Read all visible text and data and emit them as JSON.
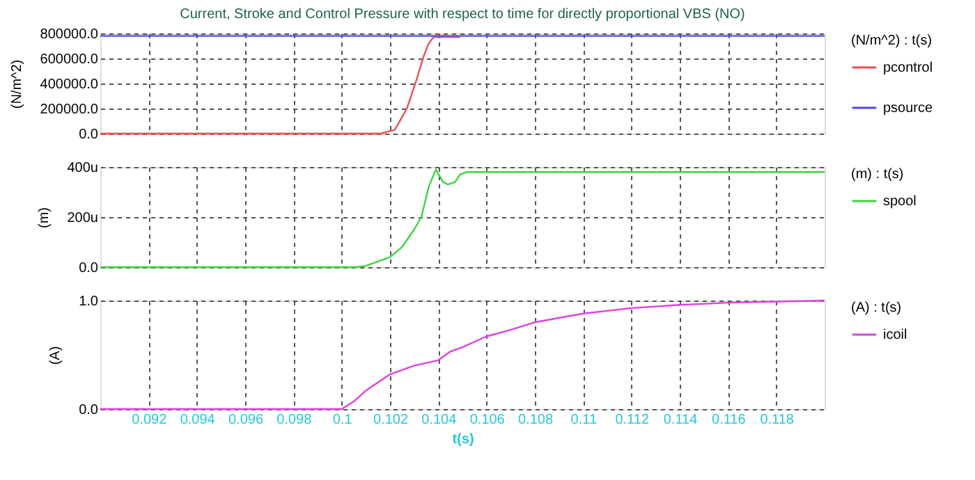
{
  "chart_data": [
    {
      "type": "line",
      "title": "Current, Stroke and Control Pressure with respect to time for directly proportional VBS (NO)",
      "ylabel": "(N/m^2)",
      "legend_title": "(N/m^2) : t(s)",
      "legend": "right",
      "grid": true,
      "tick_labels": "y",
      "line_style": "solid",
      "xlim": [
        0.09,
        0.12
      ],
      "xticks": [
        0.092,
        0.094,
        0.096,
        0.098,
        0.1,
        0.102,
        0.104,
        0.106,
        0.108,
        0.11,
        0.112,
        0.114,
        0.116,
        0.118
      ],
      "ylim": [
        0,
        800000
      ],
      "yticks": [
        {
          "value": 0,
          "label": "0.0"
        },
        {
          "value": 200000,
          "label": "200000.0"
        },
        {
          "value": 400000,
          "label": "400000.0"
        },
        {
          "value": 600000,
          "label": "600000.0"
        },
        {
          "value": 800000,
          "label": "800000.0"
        }
      ],
      "series": [
        {
          "name": "pcontrol",
          "color": "#e8534f",
          "x": [
            0.09,
            0.1016,
            0.1022,
            0.1027,
            0.1031,
            0.1034,
            0.1036,
            0.1038,
            0.1049
          ],
          "values": [
            0,
            0,
            30000,
            200000,
            430000,
            620000,
            720000,
            770000,
            770000
          ]
        },
        {
          "name": "psource",
          "color": "#4b4be0",
          "x": [
            0.09,
            0.12
          ],
          "values": [
            780000,
            780000
          ]
        }
      ]
    },
    {
      "type": "line",
      "ylabel": "(m)",
      "legend_title": "(m) : t(s)",
      "legend": "right",
      "grid": true,
      "tick_labels": "y",
      "line_style": "solid",
      "xlim": [
        0.09,
        0.12
      ],
      "xticks": [
        0.092,
        0.094,
        0.096,
        0.098,
        0.1,
        0.102,
        0.104,
        0.106,
        0.108,
        0.11,
        0.112,
        0.114,
        0.116,
        0.118
      ],
      "ylim": [
        0,
        400
      ],
      "yticks": [
        {
          "value": 0,
          "label": "0.0"
        },
        {
          "value": 200,
          "label": "200u"
        },
        {
          "value": 400,
          "label": "400u"
        }
      ],
      "series": [
        {
          "name": "spool",
          "color": "#3ed43e",
          "x": [
            0.09,
            0.1006,
            0.101,
            0.102,
            0.1025,
            0.103,
            0.1033,
            0.1036,
            0.1039,
            0.1042,
            0.1044,
            0.1047,
            0.1049,
            0.1052,
            0.12
          ],
          "values": [
            0,
            0,
            5,
            40,
            80,
            150,
            200,
            320,
            390,
            340,
            330,
            340,
            370,
            380,
            380
          ]
        }
      ]
    },
    {
      "type": "line",
      "ylabel": "(A)",
      "xlabel": "t(s)",
      "legend_title": "(A) : t(s)",
      "legend": "right",
      "grid": true,
      "line_style": "solid",
      "xlim": [
        0.09,
        0.12
      ],
      "xticks": [
        0.092,
        0.094,
        0.096,
        0.098,
        0.1,
        0.102,
        0.104,
        0.106,
        0.108,
        0.11,
        0.112,
        0.114,
        0.116,
        0.118
      ],
      "ylim": [
        0,
        1
      ],
      "yticks": [
        {
          "value": 0,
          "label": "0.0"
        },
        {
          "value": 1,
          "label": "1.0"
        }
      ],
      "series": [
        {
          "name": "icoil",
          "color": "#e040e0",
          "x": [
            0.09,
            0.1,
            0.1005,
            0.101,
            0.102,
            0.103,
            0.104,
            0.1045,
            0.105,
            0.106,
            0.107,
            0.108,
            0.109,
            0.11,
            0.112,
            0.114,
            0.116,
            0.118,
            0.12
          ],
          "values": [
            0,
            0,
            0.07,
            0.17,
            0.32,
            0.4,
            0.45,
            0.53,
            0.57,
            0.67,
            0.73,
            0.8,
            0.84,
            0.88,
            0.93,
            0.96,
            0.98,
            0.99,
            1.0
          ]
        }
      ]
    }
  ]
}
